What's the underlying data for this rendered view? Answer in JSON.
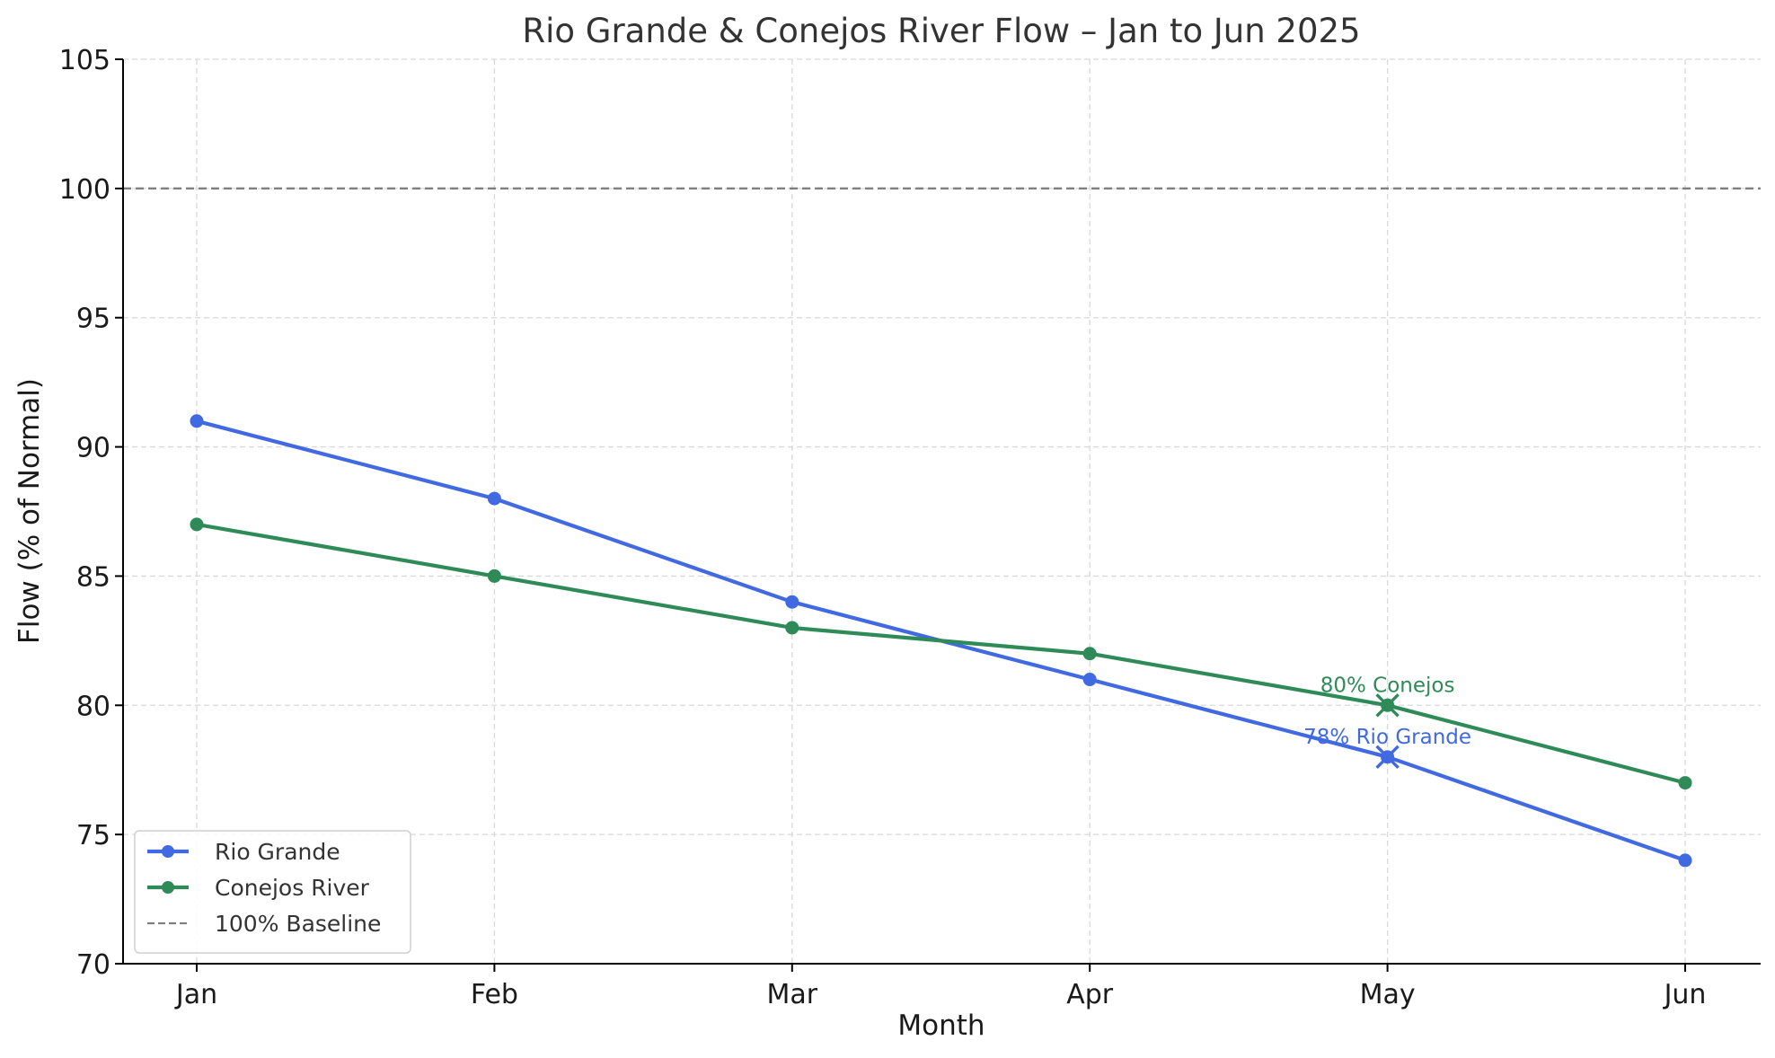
{
  "chart_data": {
    "type": "line",
    "title": "Rio Grande & Conejos River Flow – Jan to Jun 2025",
    "xlabel": "Month",
    "ylabel": "Flow (% of Normal)",
    "categories": [
      "Jan",
      "Feb",
      "Mar",
      "Apr",
      "May",
      "Jun"
    ],
    "ylim": [
      70,
      105
    ],
    "yticks": [
      70,
      75,
      80,
      85,
      90,
      95,
      100,
      105
    ],
    "grid": true,
    "legend_position": "lower-left",
    "series": [
      {
        "name": "Rio Grande",
        "values": [
          91,
          88,
          84,
          81,
          78,
          74
        ],
        "color": "#4169e1",
        "marker": "circle"
      },
      {
        "name": "Conejos River",
        "values": [
          87,
          85,
          83,
          82,
          80,
          77
        ],
        "color": "#2e8b57",
        "marker": "circle"
      }
    ],
    "reference_lines": [
      {
        "name": "100% Baseline",
        "y": 100,
        "color": "#808080",
        "style": "dashed"
      }
    ],
    "highlights": [
      {
        "series": "Rio Grande",
        "category": "May",
        "marker": "x",
        "label": "78% Rio Grande",
        "color": "#4169e1"
      },
      {
        "series": "Conejos River",
        "category": "May",
        "marker": "x",
        "label": "80% Conejos",
        "color": "#2e8b57"
      }
    ]
  }
}
